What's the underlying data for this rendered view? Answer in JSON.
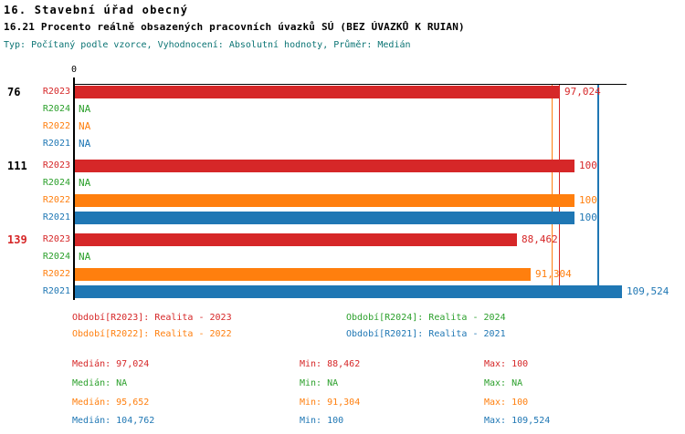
{
  "header": {
    "title": "16. Stavební úřad obecný",
    "subtitle": "16.21 Procento reálně obsazených pracovních úvazků SÚ (BEZ ÚVAZKŮ K RUIAN)",
    "meta": "Typ: Počítaný podle vzorce, Vyhodnocení: Absolutní hodnoty, Průměr: Medián"
  },
  "colors": {
    "R2023": "#d62728",
    "R2024": "#2ca02c",
    "R2022": "#ff7f0e",
    "R2021": "#1f77b4",
    "axis": "#000000",
    "meta_text": "#0b7474",
    "highlight_group_label": "#d62728",
    "normal_group_label": "#000000"
  },
  "chart_data": {
    "type": "bar",
    "orientation": "horizontal",
    "title": "16.21 Procento reálně obsazených pracovních úvazků SÚ (BEZ ÚVAZKŮ K RUIAN)",
    "xlabel": "",
    "ylabel": "",
    "xlim": [
      0,
      110.6
    ],
    "grid": false,
    "legend_position": "bottom",
    "x_axis": {
      "origin_label": "0"
    },
    "series_order": [
      "R2023",
      "R2024",
      "R2022",
      "R2021"
    ],
    "na_text": "NA",
    "groups": [
      {
        "label": "76",
        "label_color": "#000000",
        "bars": [
          {
            "series": "R2023",
            "value": 97.024,
            "display": "97,024"
          },
          {
            "series": "R2024",
            "value": null,
            "display": "NA"
          },
          {
            "series": "R2022",
            "value": null,
            "display": "NA"
          },
          {
            "series": "R2021",
            "value": null,
            "display": "NA"
          }
        ]
      },
      {
        "label": "111",
        "label_color": "#000000",
        "bars": [
          {
            "series": "R2023",
            "value": 100,
            "display": "100"
          },
          {
            "series": "R2024",
            "value": null,
            "display": "NA"
          },
          {
            "series": "R2022",
            "value": 100,
            "display": "100"
          },
          {
            "series": "R2021",
            "value": 100,
            "display": "100"
          }
        ]
      },
      {
        "label": "139",
        "label_color": "#d62728",
        "bars": [
          {
            "series": "R2023",
            "value": 88.462,
            "display": "88,462"
          },
          {
            "series": "R2024",
            "value": null,
            "display": "NA"
          },
          {
            "series": "R2022",
            "value": 91.304,
            "display": "91,304"
          },
          {
            "series": "R2021",
            "value": 109.524,
            "display": "109,524"
          }
        ]
      }
    ],
    "median_lines": [
      {
        "series": "R2022",
        "value": 95.652
      },
      {
        "series": "R2023",
        "value": 97.024
      },
      {
        "series": "R2021",
        "value": 104.762
      }
    ]
  },
  "legend": {
    "items": [
      {
        "series": "R2023",
        "text": "Období[R2023]: Realita - 2023"
      },
      {
        "series": "R2024",
        "text": "Období[R2024]: Realita - 2024"
      },
      {
        "series": "R2022",
        "text": "Období[R2022]: Realita - 2022"
      },
      {
        "series": "R2021",
        "text": "Období[R2021]: Realita - 2021"
      }
    ]
  },
  "stats": {
    "labels": {
      "median": "Medián",
      "min": "Min",
      "max": "Max"
    },
    "rows": [
      {
        "series": "R2023",
        "median": "97,024",
        "min": "88,462",
        "max": "100"
      },
      {
        "series": "R2024",
        "median": "NA",
        "min": "NA",
        "max": "NA"
      },
      {
        "series": "R2022",
        "median": "95,652",
        "min": "91,304",
        "max": "100"
      },
      {
        "series": "R2021",
        "median": "104,762",
        "min": "100",
        "max": "109,524"
      }
    ]
  }
}
